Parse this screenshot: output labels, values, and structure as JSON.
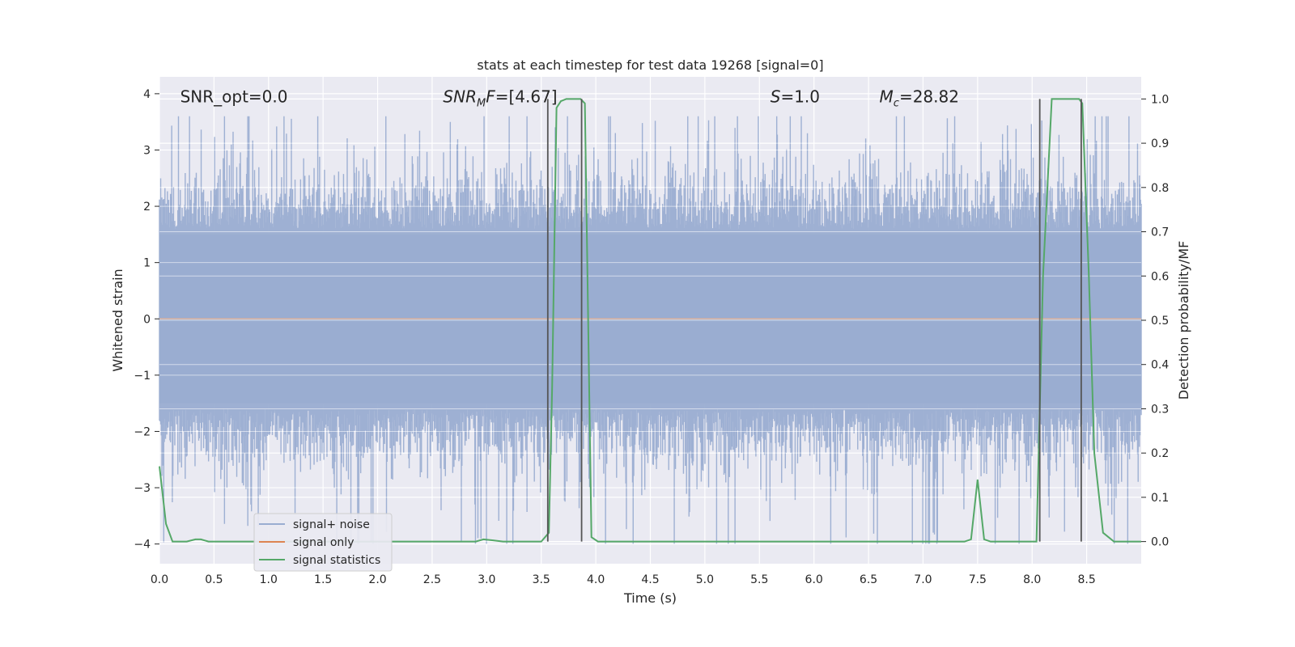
{
  "chart_data": {
    "type": "line",
    "title": "stats at each timestep for test data 19268 [signal=0]",
    "xlabel": "Time (s)",
    "ylabel": "Whitened strain",
    "ylabel_right": "Detection probability/MF",
    "xlim": [
      0.0,
      9.0
    ],
    "ylim": [
      -4.35,
      4.3
    ],
    "ylim_right": [
      -0.05,
      1.05
    ],
    "x_ticks": [
      "0.0",
      "0.5",
      "1.0",
      "1.5",
      "2.0",
      "2.5",
      "3.0",
      "3.5",
      "4.0",
      "4.5",
      "5.0",
      "5.5",
      "6.0",
      "6.5",
      "7.0",
      "7.5",
      "8.0",
      "8.5"
    ],
    "y_ticks": [
      "4",
      "3",
      "2",
      "1",
      "0",
      "−1",
      "−2",
      "−3",
      "−4"
    ],
    "y_right_ticks": [
      "1.0",
      "0.9",
      "0.8",
      "0.7",
      "0.6",
      "0.5",
      "0.4",
      "0.3",
      "0.2",
      "0.1",
      "0.0"
    ],
    "grid": true,
    "legend_position": "lower-left",
    "annotations": {
      "snr_opt": "SNR_opt=0.0",
      "snr_mf_base": "SNR",
      "snr_mf_sub": "M",
      "snr_mf_rest": "F=[4.67]",
      "s_label_italic": "S",
      "s_label_rest": "=1.0",
      "mc_base": "M",
      "mc_sub": "c",
      "mc_rest": "=28.82"
    },
    "series": [
      {
        "name": "signal+ noise",
        "color": "#9aadd1",
        "noise_band": {
          "x_range": [
            0.0,
            9.0
          ],
          "typical_low": -1.6,
          "typical_high": 1.6,
          "max": 3.6,
          "min": -4.0
        }
      },
      {
        "name": "signal only",
        "color": "#dd8452",
        "x": [
          0.0,
          9.0
        ],
        "y": [
          0.0,
          0.0
        ]
      },
      {
        "name": "signal statistics",
        "color": "#55a868",
        "axis": "right",
        "x": [
          0.0,
          0.06,
          0.12,
          0.25,
          0.33,
          0.38,
          0.45,
          2.9,
          2.97,
          3.05,
          3.15,
          3.3,
          3.5,
          3.57,
          3.6,
          3.64,
          3.68,
          3.73,
          3.86,
          3.9,
          3.96,
          4.02,
          7.3,
          7.38,
          7.44,
          7.5,
          7.56,
          7.62,
          8.04,
          8.1,
          8.18,
          8.25,
          8.43,
          8.46,
          8.52,
          8.57,
          8.65,
          8.75,
          9.0
        ],
        "y": [
          0.17,
          0.04,
          0.0,
          0.0,
          0.005,
          0.005,
          0.0,
          0.0,
          0.005,
          0.003,
          0.0,
          0.0,
          0.0,
          0.02,
          0.35,
          0.98,
          0.995,
          1.0,
          1.0,
          0.99,
          0.01,
          0.0,
          0.0,
          0.0,
          0.005,
          0.14,
          0.005,
          0.0,
          0.0,
          0.6,
          1.0,
          1.0,
          1.0,
          0.99,
          0.6,
          0.2,
          0.02,
          0.0,
          0.0
        ]
      }
    ],
    "vertical_markers": [
      3.56,
      3.87,
      8.07,
      8.45
    ],
    "vertical_marker_color": "#555555"
  }
}
